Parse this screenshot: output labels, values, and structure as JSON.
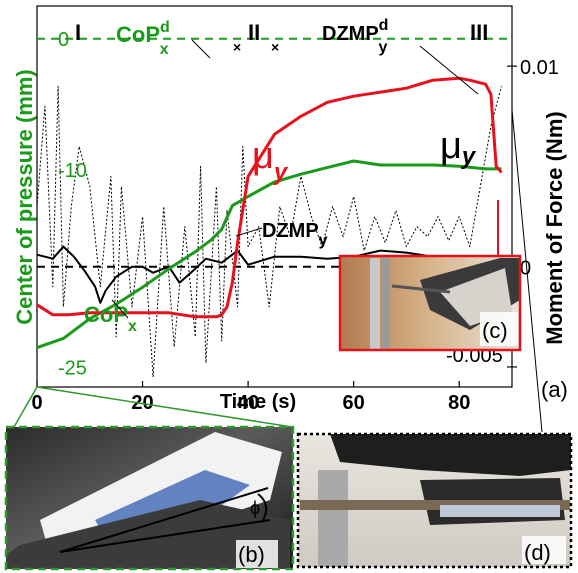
{
  "panel_label": "(a)",
  "inset_labels": {
    "b": "(b)",
    "c": "(c)",
    "d": "(d)",
    "phi": "ϕ"
  },
  "phase_labels": [
    "I",
    "II",
    "III"
  ],
  "markers": [
    "×",
    "×"
  ],
  "colors": {
    "cop_x": "#1a9a1a",
    "mu_y": "#e8101a",
    "dzmp_y": "#000000",
    "inset_b_border": "#2e9a2e",
    "inset_c_border": "#e8101a"
  },
  "chart_data": {
    "type": "line",
    "xlabel": "Time (s)",
    "ylabel_left": "Center of pressure (mm)",
    "ylabel_right": "Moment of Force (Nm)",
    "xlim": [
      0,
      90
    ],
    "x_ticks": [
      "0",
      "20",
      "40",
      "60",
      "80"
    ],
    "x_tick_values": [
      0,
      20,
      40,
      60,
      80
    ],
    "ylim_left": [
      -26.5,
      2.5
    ],
    "y_ticks_left": [
      "0",
      "-10",
      "-25"
    ],
    "y_tick_values_left": [
      0,
      -10,
      -25
    ],
    "ylim_right": [
      -0.006,
      0.013
    ],
    "y_ticks_right": [
      "0.01",
      "0",
      "-0.005"
    ],
    "y_tick_values_right": [
      0.01,
      0,
      -0.005
    ],
    "series": [
      {
        "name": "CoP_x^d",
        "label_main": "CoP",
        "label_sub": "x",
        "label_sup": "d",
        "axis": "left",
        "style": "dashed",
        "x": [
          0,
          90
        ],
        "y": [
          0,
          0
        ]
      },
      {
        "name": "DZMP_y^d",
        "label_main": "DZMP",
        "label_sub": "y",
        "label_sup": "d",
        "axis": "right",
        "style": "dashed",
        "x": [
          0,
          90
        ],
        "y": [
          0,
          0
        ]
      },
      {
        "name": "CoP_x",
        "label_main": "CoP",
        "label_sub": "x",
        "axis": "left",
        "style": "solid",
        "x": [
          0,
          5,
          10,
          15,
          20,
          25,
          30,
          33,
          35,
          37,
          40,
          45,
          50,
          55,
          60,
          65,
          70,
          75,
          80,
          85,
          88
        ],
        "y": [
          -23.5,
          -22.8,
          -21.3,
          -20.2,
          -18.9,
          -17.5,
          -16.2,
          -15.3,
          -14.5,
          -12.7,
          -12,
          -10.9,
          -10.3,
          -9.8,
          -9.3,
          -9.6,
          -9.6,
          -9.6,
          -9.7,
          -9.9,
          -9.9
        ]
      },
      {
        "name": "μ_y",
        "label_main": "μ",
        "label_sub": "y",
        "axis": "right",
        "style": "solid",
        "x": [
          0,
          3,
          6,
          10,
          15,
          20,
          25,
          30,
          34,
          35,
          36,
          37,
          38,
          40,
          45,
          50,
          55,
          60,
          65,
          70,
          75,
          80,
          82,
          85,
          86,
          87,
          88
        ],
        "y": [
          -0.0019,
          -0.0024,
          -0.0024,
          -0.0023,
          -0.0023,
          -0.0023,
          -0.0023,
          -0.0025,
          -0.0025,
          -0.0024,
          -0.002,
          -0.0008,
          0.0012,
          0.0045,
          0.0066,
          0.0075,
          0.0082,
          0.0085,
          0.0087,
          0.0089,
          0.0093,
          0.0094,
          0.0093,
          0.0091,
          0.0086,
          0.005,
          0.0047
        ]
      },
      {
        "name": "DZMP_y",
        "label_main": "DZMP",
        "label_sub": "y",
        "axis": "right",
        "style": "solid",
        "x": [
          0,
          3,
          5,
          7,
          9,
          11,
          12,
          13,
          15,
          18,
          20,
          22,
          25,
          27,
          30,
          32,
          35,
          38,
          40,
          45,
          50,
          55,
          60,
          65,
          70,
          75,
          80,
          85,
          88
        ],
        "y": [
          0.0006,
          0.0004,
          0.001,
          0.0005,
          -0.0002,
          -0.001,
          -0.0018,
          -0.0012,
          -0.0005,
          0,
          0,
          -0.0003,
          0,
          -0.0008,
          -0.0001,
          0.0004,
          0.0002,
          0.0008,
          0.0001,
          0.0005,
          0.0005,
          0.0004,
          0.0005,
          0.0008,
          0.0007,
          0.0005,
          0.0001,
          -0.0003,
          -0.0004
        ]
      },
      {
        "name": "DZMP_y_raw",
        "axis": "right",
        "style": "dotted",
        "x": [
          0,
          1.5,
          3,
          4,
          5,
          6.5,
          8,
          10,
          12,
          14,
          15,
          16,
          18,
          20,
          22,
          24,
          26,
          28,
          30,
          31,
          32,
          34,
          35,
          36,
          38,
          39,
          40,
          42,
          44,
          46,
          48,
          50,
          52,
          54,
          56,
          58,
          60,
          62,
          64,
          66,
          68,
          70,
          72,
          74,
          76,
          78,
          80,
          82,
          84,
          86,
          88
        ],
        "y": [
          0.003,
          0.008,
          -0.001,
          0.009,
          -0.002,
          0.003,
          0.006,
          0.004,
          -0.001,
          0.0045,
          -0.0035,
          0.004,
          -0.002,
          0.0025,
          -0.0055,
          0.003,
          -0.004,
          0.002,
          -0.0035,
          0.005,
          -0.0048,
          0.004,
          -0.0037,
          0.0028,
          -0.002,
          0.006,
          0.001,
          0.002,
          -0.002,
          0.003,
          0.0015,
          0.0045,
          0.0025,
          0.001,
          0.003,
          0.0015,
          0.0035,
          0.0008,
          0.0025,
          0.0012,
          0.0028,
          0.001,
          0.002,
          0.0015,
          0.0025,
          0.0013,
          0.0025,
          0.001,
          0.004,
          0.007,
          0.009
        ]
      }
    ]
  }
}
